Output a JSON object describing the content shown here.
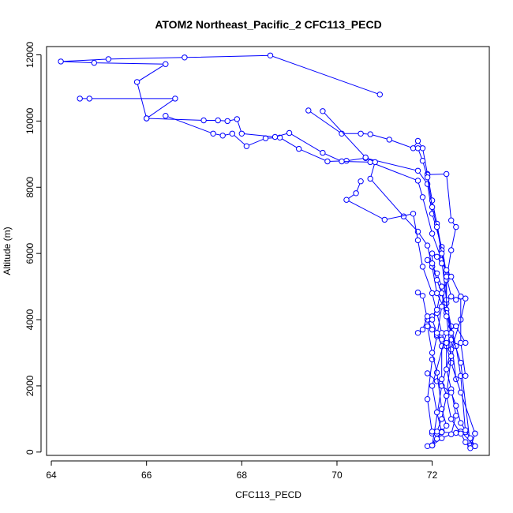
{
  "chart_data": {
    "type": "line",
    "title": "ATOM2 Northeast_Pacific_2 CFC113_PECD",
    "xlabel": "CFC113_PECD",
    "ylabel": "Altitude (m)",
    "xlim": [
      63.9,
      73.2
    ],
    "ylim": [
      -100,
      12250
    ],
    "xticks": [
      64,
      66,
      68,
      70,
      72
    ],
    "yticks": [
      0,
      2000,
      4000,
      6000,
      8000,
      10000,
      12000
    ],
    "grid": false,
    "legend": "none",
    "color": "#0000ff",
    "marker": "open-circle",
    "series": [
      {
        "x": [
          70.9,
          68.6,
          66.8,
          65.2,
          64.2,
          64.9,
          66.4,
          65.8,
          66.0,
          66.6,
          64.8,
          64.6
        ],
        "y": [
          10800,
          11980,
          11920,
          11870,
          11800,
          11760,
          11720,
          11180,
          10080,
          10680,
          10680,
          10680
        ]
      },
      {
        "x": [
          66.4,
          67.4,
          67.6,
          67.8,
          68.1,
          68.5,
          68.8,
          69.2,
          69.8,
          70.2,
          70.6,
          71.7,
          71.9,
          72.0,
          72.2,
          72.3,
          72.3,
          72.4
        ],
        "y": [
          10160,
          9620,
          9560,
          9620,
          9240,
          9480,
          9500,
          9160,
          8780,
          8800,
          8880,
          8500,
          8100,
          7200,
          6200,
          5400,
          4500,
          3800
        ]
      },
      {
        "x": [
          66.0,
          67.2,
          67.5,
          67.7,
          67.9,
          68.0,
          68.7,
          69.0,
          69.7,
          70.1,
          70.7,
          71.7,
          71.8,
          72.0,
          72.2,
          72.3,
          72.4,
          72.5
        ],
        "y": [
          10080,
          10020,
          10020,
          10000,
          10060,
          9620,
          9520,
          9640,
          9040,
          8780,
          8760,
          8200,
          7700,
          6600,
          5800,
          4600,
          3400,
          2200
        ]
      },
      {
        "x": [
          69.4,
          70.1,
          70.5,
          70.7,
          71.1,
          71.6,
          71.7,
          71.8,
          71.9,
          72.0,
          72.1,
          72.2,
          72.3,
          72.3,
          72.5,
          72.6,
          72.7
        ],
        "y": [
          10320,
          9620,
          9620,
          9600,
          9440,
          9180,
          9400,
          9180,
          8400,
          7600,
          6900,
          6100,
          5300,
          4300,
          3200,
          2300,
          600
        ]
      },
      {
        "x": [
          69.7,
          70.6,
          70.8,
          70.7,
          71.4,
          71.7,
          71.9,
          72.0,
          72.1,
          72.3,
          72.4,
          72.6,
          72.8
        ],
        "y": [
          10300,
          8900,
          8760,
          8260,
          7120,
          6660,
          6240,
          5600,
          4800,
          4200,
          3600,
          2700,
          200
        ]
      },
      {
        "x": [
          70.5,
          70.4,
          70.2,
          71.0,
          71.6,
          71.7,
          71.8,
          72.0,
          72.1,
          72.2,
          72.3,
          72.4,
          72.6,
          72.9
        ],
        "y": [
          8180,
          7820,
          7620,
          7020,
          7200,
          6400,
          5600,
          4800,
          4200,
          3600,
          3200,
          2700,
          1800,
          560
        ]
      },
      {
        "x": [
          71.9,
          72.3,
          72.4,
          72.5,
          72.4,
          72.3,
          72.2,
          72.1,
          72.0,
          71.9,
          72.0,
          72.2,
          72.5,
          72.6,
          72.9
        ],
        "y": [
          8380,
          8400,
          7000,
          6800,
          6100,
          5200,
          4400,
          3500,
          2800,
          1600,
          560,
          600,
          580,
          620,
          180
        ]
      },
      {
        "x": [
          71.7,
          71.8,
          71.9,
          72.0,
          72.1,
          72.2,
          72.3,
          72.4,
          72.5,
          72.6,
          72.7,
          72.6,
          72.4,
          72.2,
          72.0
        ],
        "y": [
          9180,
          8800,
          8300,
          7400,
          6800,
          6000,
          5300,
          4700,
          4600,
          4700,
          4640,
          4000,
          3100,
          2000,
          200
        ]
      },
      {
        "x": [
          71.7,
          71.8,
          71.9,
          72.0,
          72.1,
          72.2,
          72.3,
          72.3,
          72.4,
          72.5,
          72.4,
          72.2,
          72.0
        ],
        "y": [
          4820,
          4720,
          4000,
          3700,
          3540,
          3400,
          3300,
          2500,
          1900,
          1100,
          540,
          420,
          200
        ]
      },
      {
        "x": [
          71.9,
          72.1,
          72.2,
          72.4,
          72.5,
          72.6,
          72.7,
          72.8,
          72.9
        ],
        "y": [
          2380,
          2140,
          2000,
          1800,
          1400,
          880,
          660,
          420,
          180
        ]
      },
      {
        "x": [
          72.0,
          72.1,
          72.2,
          72.3,
          72.2,
          72.1,
          72.0,
          71.9,
          72.0,
          72.1,
          72.2
        ],
        "y": [
          200,
          560,
          620,
          800,
          1300,
          2400,
          3000,
          3800,
          4100,
          4300,
          5000
        ]
      },
      {
        "x": [
          71.7,
          71.8,
          71.9,
          72.0,
          72.1,
          72.2,
          72.2,
          72.3,
          72.4,
          72.6,
          72.7,
          72.8,
          72.9
        ],
        "y": [
          3600,
          3700,
          4100,
          4000,
          3600,
          3200,
          2200,
          1700,
          1000,
          560,
          300,
          120,
          560
        ]
      },
      {
        "x": [
          72.2,
          72.1,
          72.0,
          72.0,
          72.1,
          72.2,
          72.3,
          72.4,
          72.6,
          72.6,
          72.7
        ],
        "y": [
          5000,
          5400,
          5600,
          6000,
          5900,
          5700,
          5500,
          5300,
          4700,
          3300,
          2300
        ]
      },
      {
        "x": [
          71.9,
          72.0,
          72.1,
          72.2,
          72.3,
          72.4,
          72.3,
          72.2,
          72.1,
          72.0
        ],
        "y": [
          5800,
          5700,
          5200,
          4800,
          4100,
          2900,
          1700,
          1000,
          620,
          620
        ]
      },
      {
        "x": [
          71.9,
          72.0,
          72.1,
          72.2,
          72.1,
          72.0,
          72.3,
          72.5,
          72.7
        ],
        "y": [
          180,
          200,
          400,
          600,
          1200,
          2000,
          3600,
          3800,
          3300
        ]
      }
    ]
  }
}
